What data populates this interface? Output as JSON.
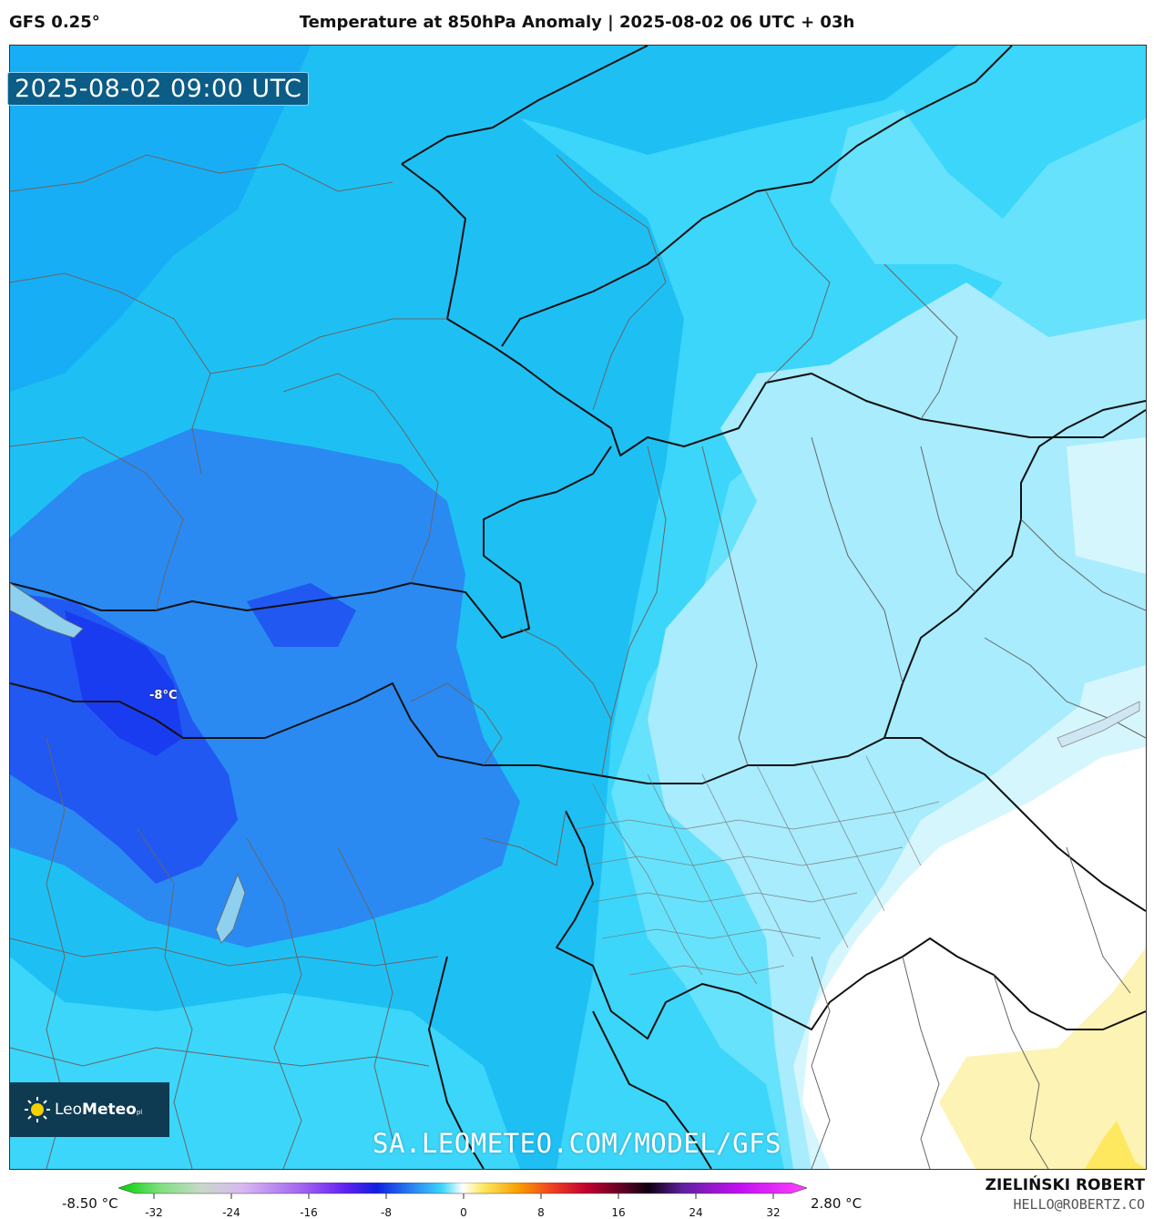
{
  "header": {
    "model": "GFS 0.25°",
    "title": "Temperature at 850hPa Anomaly | 2025-08-02 06 UTC + 03h"
  },
  "map": {
    "valid_time": "2025-08-02 09:00 UTC",
    "min_label": "-8°C",
    "watermark": "SA.LEOMETEO.COM/MODEL/GFS",
    "logo": {
      "name": "LeoMeteo",
      "part1": "Leo",
      "part2": "Meteo",
      "suffix": "pl"
    },
    "colors": {
      "anomaly_-9": "#1a3cf0",
      "anomaly_-8": "#2158f2",
      "anomaly_-7": "#2a8af2",
      "anomaly_-6": "#18aef5",
      "anomaly_-5": "#1ec8f8",
      "anomaly_-4": "#3cd6fa",
      "anomaly_-3": "#66e2fc",
      "anomaly_-2": "#a8ecfd",
      "anomaly_-1": "#d6f6fe",
      "anomaly_0": "#ffffff",
      "anomaly_+1": "#fdf3b4",
      "anomaly_+2": "#fde860"
    }
  },
  "legend": {
    "min_label": "-8.50 °C",
    "max_label": "2.80 °C",
    "ticks": [
      "-32",
      "-24",
      "-16",
      "-8",
      "0",
      "8",
      "16",
      "24",
      "32"
    ]
  },
  "credit": {
    "name": "ZIELIŃSKI ROBERT",
    "email": "HELLO@ROBERTZ.CO"
  }
}
